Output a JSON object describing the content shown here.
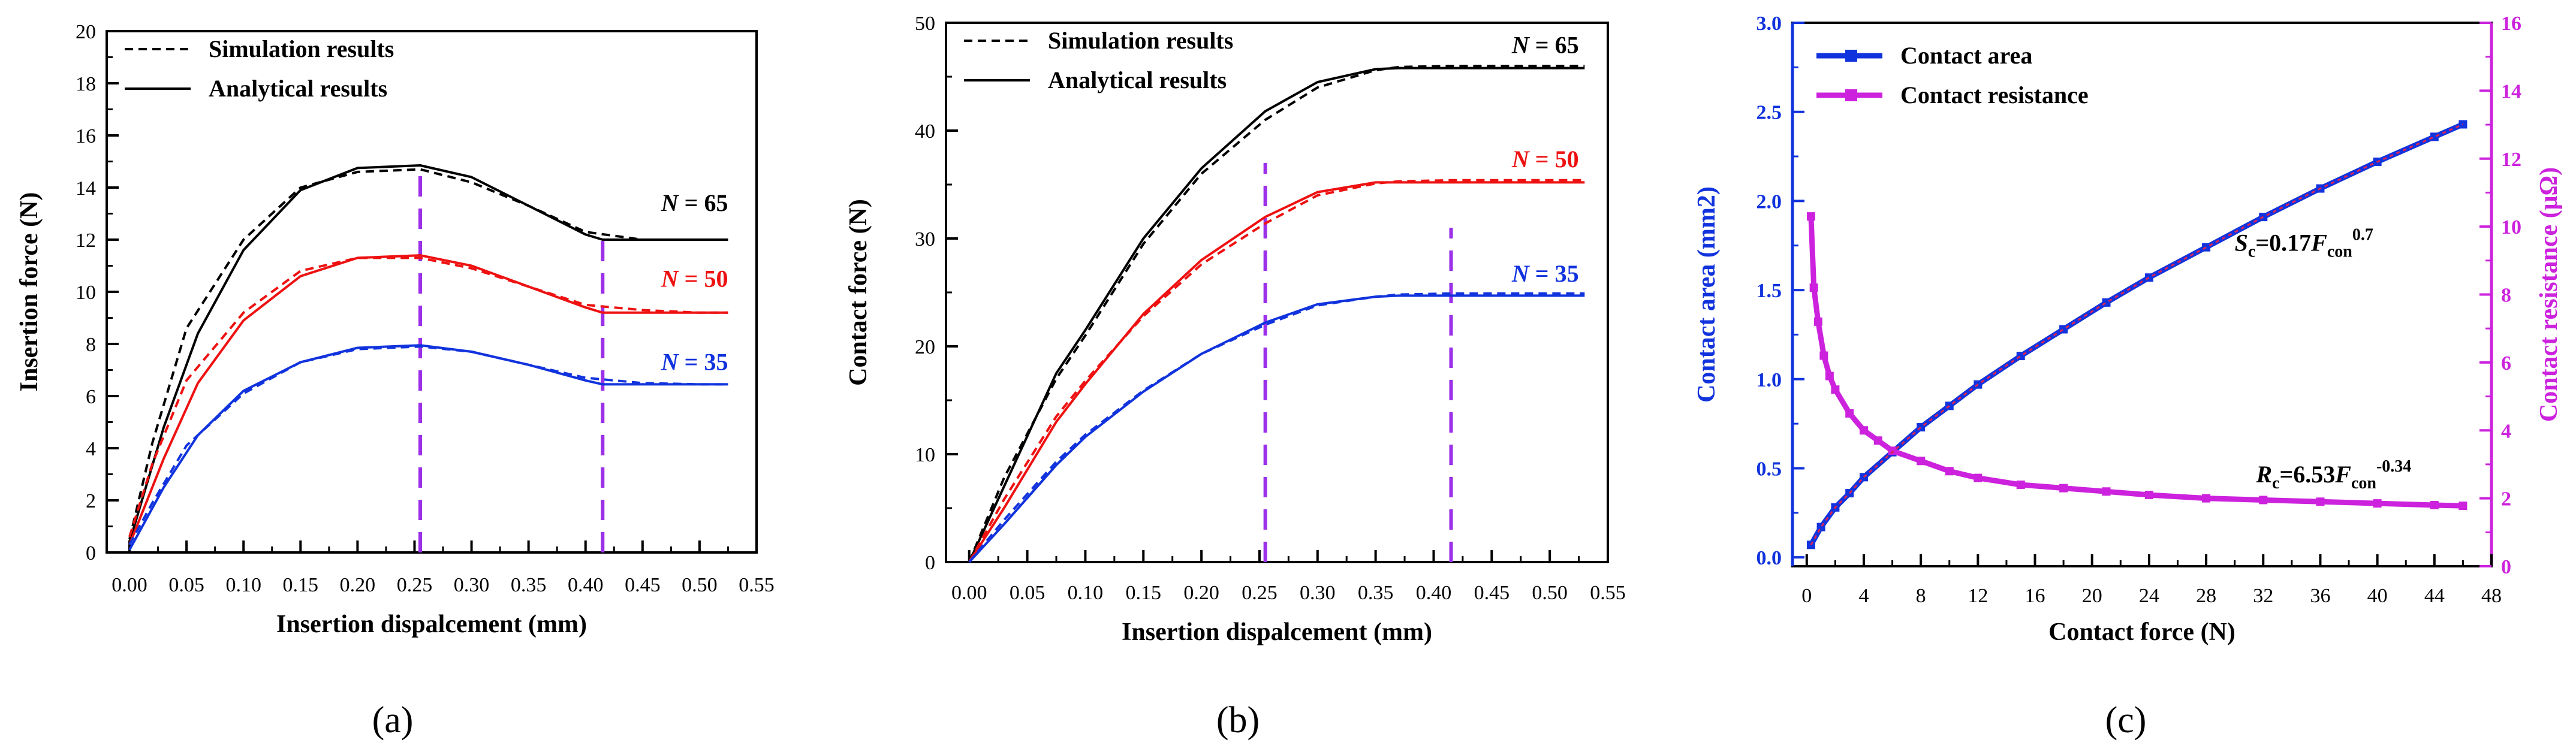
{
  "panel_labels": [
    "(a)",
    "(b)",
    "(c)"
  ],
  "chart_data": [
    {
      "type": "line",
      "title": "",
      "xlabel": "Insertion dispalcement (mm)",
      "ylabel": "Insertion force (N)",
      "xlim": [
        -0.02,
        0.55
      ],
      "ylim": [
        0,
        20
      ],
      "xticks": [
        "0.00",
        "0.05",
        "0.10",
        "0.15",
        "0.20",
        "0.25",
        "0.30",
        "0.35",
        "0.40",
        "0.45",
        "0.50",
        "0.55"
      ],
      "yticks": [
        "0",
        "2",
        "4",
        "6",
        "8",
        "10",
        "12",
        "14",
        "16",
        "18",
        "20"
      ],
      "legend": {
        "position": "top-left",
        "entries": [
          "Simulation results",
          "Analytical results"
        ]
      },
      "vlines": [
        0.255,
        0.415
      ],
      "annotations": [
        {
          "prefix": "N",
          "text": " = 65",
          "color": "#000000",
          "x": 0.525,
          "y": 13.1
        },
        {
          "prefix": "N",
          "text": " = 50",
          "color": "#ee1111",
          "x": 0.525,
          "y": 10.2
        },
        {
          "prefix": "N",
          "text": " = 35",
          "color": "#1133dd",
          "x": 0.525,
          "y": 7.0
        }
      ],
      "series": [
        {
          "name": "Analytical results, N = 65",
          "color": "#000000",
          "dash": "solid",
          "x": [
            0.0,
            0.03,
            0.06,
            0.1,
            0.15,
            0.2,
            0.255,
            0.3,
            0.35,
            0.4,
            0.415,
            0.45,
            0.5,
            0.525
          ],
          "y": [
            0.4,
            4.8,
            8.4,
            11.6,
            13.9,
            14.75,
            14.85,
            14.4,
            13.3,
            12.2,
            12.0,
            12.0,
            12.0,
            12.0
          ]
        },
        {
          "name": "Simulation results, N = 65",
          "color": "#000000",
          "dash": "dashed",
          "x": [
            0.0,
            0.02,
            0.05,
            0.1,
            0.15,
            0.2,
            0.255,
            0.3,
            0.35,
            0.4,
            0.45,
            0.5,
            0.525
          ],
          "y": [
            0.5,
            4.2,
            8.6,
            12.0,
            14.0,
            14.6,
            14.7,
            14.2,
            13.3,
            12.3,
            12.0,
            12.0,
            12.0
          ]
        },
        {
          "name": "Analytical results, N = 50",
          "color": "#ee1111",
          "dash": "solid",
          "x": [
            0.0,
            0.03,
            0.06,
            0.1,
            0.15,
            0.2,
            0.255,
            0.3,
            0.35,
            0.4,
            0.415,
            0.45,
            0.5,
            0.525
          ],
          "y": [
            0.3,
            3.6,
            6.5,
            8.9,
            10.6,
            11.3,
            11.4,
            11.0,
            10.2,
            9.4,
            9.2,
            9.2,
            9.2,
            9.2
          ]
        },
        {
          "name": "Simulation results, N = 50",
          "color": "#ee1111",
          "dash": "dashed",
          "x": [
            0.0,
            0.02,
            0.05,
            0.1,
            0.15,
            0.2,
            0.255,
            0.3,
            0.35,
            0.4,
            0.45,
            0.5,
            0.525
          ],
          "y": [
            0.6,
            3.4,
            6.6,
            9.2,
            10.8,
            11.3,
            11.3,
            10.9,
            10.2,
            9.5,
            9.3,
            9.2,
            9.2
          ]
        },
        {
          "name": "Analytical results, N = 35",
          "color": "#1133dd",
          "dash": "solid",
          "x": [
            0.0,
            0.03,
            0.06,
            0.1,
            0.15,
            0.2,
            0.255,
            0.3,
            0.35,
            0.4,
            0.415,
            0.45,
            0.5,
            0.525
          ],
          "y": [
            0.1,
            2.5,
            4.5,
            6.2,
            7.3,
            7.85,
            7.95,
            7.7,
            7.2,
            6.6,
            6.45,
            6.45,
            6.45,
            6.45
          ]
        },
        {
          "name": "Simulation results, N = 35",
          "color": "#1133dd",
          "dash": "dashed",
          "x": [
            0.0,
            0.02,
            0.05,
            0.1,
            0.15,
            0.2,
            0.255,
            0.3,
            0.35,
            0.4,
            0.45,
            0.5,
            0.525
          ],
          "y": [
            0.3,
            1.9,
            4.1,
            6.1,
            7.3,
            7.8,
            7.9,
            7.7,
            7.2,
            6.7,
            6.5,
            6.45,
            6.45
          ]
        }
      ]
    },
    {
      "type": "line",
      "title": "",
      "xlabel": "Insertion dispalcement (mm)",
      "ylabel": "Contact force (N)",
      "xlim": [
        -0.02,
        0.55
      ],
      "ylim": [
        0,
        50
      ],
      "xticks": [
        "0.00",
        "0.05",
        "0.10",
        "0.15",
        "0.20",
        "0.25",
        "0.30",
        "0.35",
        "0.40",
        "0.45",
        "0.50",
        "0.55"
      ],
      "yticks": [
        "0",
        "10",
        "20",
        "30",
        "40",
        "50"
      ],
      "legend": {
        "position": "top-left",
        "entries": [
          "Simulation results",
          "Analytical results"
        ]
      },
      "vlines": [
        0.255,
        0.415
      ],
      "annotations": [
        {
          "prefix": "N",
          "text": " = 65",
          "color": "#000000",
          "x": 0.525,
          "y": 47.2
        },
        {
          "prefix": "N",
          "text": " = 50",
          "color": "#ee1111",
          "x": 0.525,
          "y": 36.6
        },
        {
          "prefix": "N",
          "text": " = 35",
          "color": "#1133dd",
          "x": 0.525,
          "y": 26.0
        }
      ],
      "series": [
        {
          "name": "Analytical results, N = 65",
          "color": "#000000",
          "dash": "solid",
          "x": [
            0.0,
            0.03,
            0.075,
            0.1,
            0.15,
            0.2,
            0.255,
            0.3,
            0.35,
            0.37,
            0.415,
            0.45,
            0.5,
            0.53
          ],
          "y": [
            0.0,
            7.0,
            17.5,
            21.5,
            30.0,
            36.5,
            41.8,
            44.5,
            45.7,
            45.8,
            45.8,
            45.8,
            45.8,
            45.8
          ]
        },
        {
          "name": "Simulation results, N = 65",
          "color": "#000000",
          "dash": "dashed",
          "x": [
            0.0,
            0.03,
            0.075,
            0.1,
            0.15,
            0.2,
            0.255,
            0.3,
            0.35,
            0.37,
            0.415,
            0.45,
            0.5,
            0.53
          ],
          "y": [
            0.0,
            7.8,
            17.0,
            21.0,
            29.5,
            36.0,
            41.0,
            44.0,
            45.6,
            45.9,
            46.0,
            46.0,
            46.0,
            46.0
          ]
        },
        {
          "name": "Analytical results, N = 50",
          "color": "#ee1111",
          "dash": "solid",
          "x": [
            0.0,
            0.03,
            0.075,
            0.1,
            0.15,
            0.2,
            0.255,
            0.3,
            0.35,
            0.37,
            0.415,
            0.45,
            0.5,
            0.53
          ],
          "y": [
            0.0,
            5.0,
            13.0,
            16.5,
            23.0,
            28.0,
            32.0,
            34.3,
            35.2,
            35.2,
            35.2,
            35.2,
            35.2,
            35.2
          ]
        },
        {
          "name": "Simulation results, N = 50",
          "color": "#ee1111",
          "dash": "dashed",
          "x": [
            0.0,
            0.03,
            0.075,
            0.1,
            0.15,
            0.2,
            0.255,
            0.3,
            0.35,
            0.37,
            0.415,
            0.45,
            0.5,
            0.53
          ],
          "y": [
            0.0,
            5.8,
            13.5,
            16.8,
            22.8,
            27.6,
            31.4,
            34.0,
            35.1,
            35.3,
            35.4,
            35.4,
            35.4,
            35.4
          ]
        },
        {
          "name": "Analytical results, N = 35",
          "color": "#1133dd",
          "dash": "solid",
          "x": [
            0.0,
            0.03,
            0.075,
            0.1,
            0.15,
            0.2,
            0.255,
            0.3,
            0.35,
            0.37,
            0.415,
            0.45,
            0.5,
            0.53
          ],
          "y": [
            0.0,
            3.5,
            9.0,
            11.6,
            15.8,
            19.3,
            22.2,
            23.9,
            24.6,
            24.7,
            24.7,
            24.7,
            24.7,
            24.7
          ]
        },
        {
          "name": "Simulation results, N = 35",
          "color": "#1133dd",
          "dash": "dashed",
          "x": [
            0.0,
            0.03,
            0.075,
            0.1,
            0.15,
            0.2,
            0.255,
            0.3,
            0.35,
            0.37,
            0.415,
            0.45,
            0.5,
            0.53
          ],
          "y": [
            0.0,
            3.9,
            9.3,
            11.8,
            15.9,
            19.3,
            22.0,
            23.8,
            24.6,
            24.8,
            24.9,
            24.9,
            24.9,
            24.9
          ]
        }
      ]
    },
    {
      "type": "line",
      "title": "",
      "xlabel": "Contact force (N)",
      "ylabel": "Contact area (mm2)",
      "y2label": "Contact resistance (μΩ)",
      "xlim": [
        -1,
        48
      ],
      "ylim": [
        -0.05,
        3.0
      ],
      "y2lim": [
        0,
        16
      ],
      "xticks": [
        "0",
        "4",
        "8",
        "12",
        "16",
        "20",
        "24",
        "28",
        "32",
        "36",
        "40",
        "44",
        "48"
      ],
      "yticks": [
        "0.0",
        "0.5",
        "1.0",
        "1.5",
        "2.0",
        "2.5",
        "3.0"
      ],
      "y2ticks": [
        "0",
        "2",
        "4",
        "6",
        "8",
        "10",
        "12",
        "14",
        "16"
      ],
      "legend": {
        "position": "top-left",
        "entries": [
          "Contact area",
          "Contact resistance"
        ]
      },
      "equations": [
        {
          "lhs": "S",
          "sub": "c",
          "mid": "=0.17",
          "var": "F",
          "varsub": "con",
          "sup": "0.7",
          "x": 30.0,
          "y": 1.72
        },
        {
          "lhs": "R",
          "sub": "c",
          "mid": "=6.53",
          "var": "F",
          "varsub": "con",
          "sup": "-0.34",
          "x": 31.5,
          "y": 0.42
        }
      ],
      "series": [
        {
          "name": "Contact area",
          "color": "#1133dd",
          "axis": "left",
          "x": [
            0.3,
            1,
            2,
            3,
            4,
            6,
            8,
            10,
            12,
            15,
            18,
            21,
            24,
            28,
            32,
            36,
            40,
            44,
            46
          ],
          "y": [
            0.07,
            0.17,
            0.28,
            0.36,
            0.45,
            0.59,
            0.73,
            0.85,
            0.97,
            1.13,
            1.28,
            1.43,
            1.57,
            1.74,
            1.91,
            2.07,
            2.22,
            2.36,
            2.43
          ]
        },
        {
          "name": "Contact resistance",
          "color": "#cc22dd",
          "axis": "right",
          "x": [
            0.3,
            0.5,
            0.8,
            1.2,
            1.6,
            2,
            3,
            4,
            5,
            6,
            8,
            10,
            12,
            15,
            18,
            21,
            24,
            28,
            32,
            36,
            40,
            44,
            46
          ],
          "y": [
            10.3,
            8.2,
            7.2,
            6.2,
            5.6,
            5.2,
            4.5,
            4.0,
            3.7,
            3.4,
            3.1,
            2.8,
            2.6,
            2.4,
            2.3,
            2.2,
            2.1,
            2.0,
            1.95,
            1.9,
            1.85,
            1.8,
            1.78
          ]
        }
      ]
    }
  ]
}
